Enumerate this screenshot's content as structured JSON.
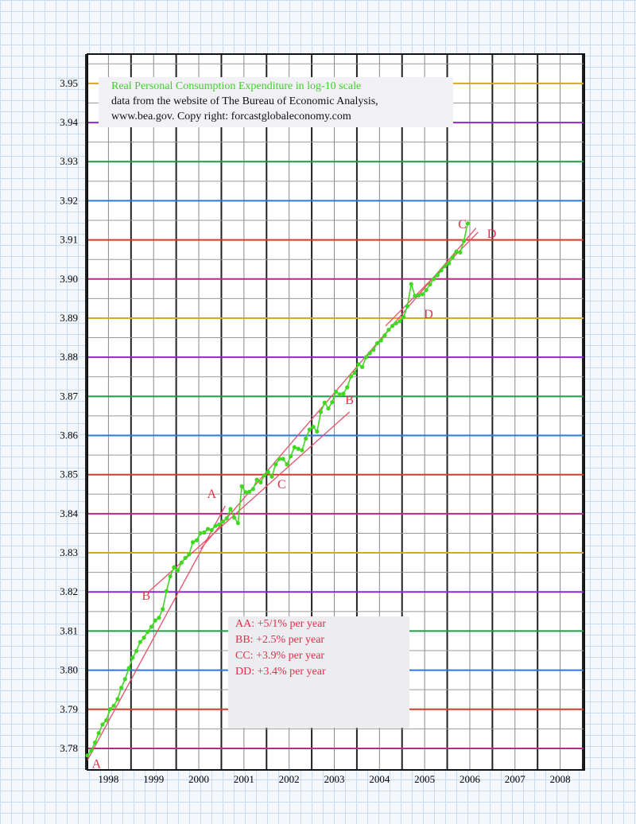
{
  "chart_data": {
    "type": "line",
    "title_lines": [
      "Real Personal Consumption Expenditure in log-10 scale",
      "data from the website of The Bureau of Economic Analysis,",
      "www.bea.gov. Copy right: forcastglobaleconomy.com"
    ],
    "xlabel": "",
    "ylabel": "",
    "x_ticks": [
      "1998",
      "1999",
      "2000",
      "2001",
      "2002",
      "2003",
      "2004",
      "2005",
      "2006",
      "2007",
      "2008"
    ],
    "y_ticks": [
      "3.78",
      "3.79",
      "3.80",
      "3.81",
      "3.82",
      "3.83",
      "3.84",
      "3.85",
      "3.86",
      "3.87",
      "3.88",
      "3.89",
      "3.90",
      "3.91",
      "3.92",
      "3.93",
      "3.94",
      "3.95"
    ],
    "xlim": [
      1998,
      2009
    ],
    "ylim": [
      3.7745,
      3.9575
    ],
    "grid": true,
    "series": [
      {
        "color": "#40d820",
        "x": [
          1998.0,
          1998.083,
          1998.167,
          1998.25,
          1998.333,
          1998.417,
          1998.5,
          1998.583,
          1998.667,
          1998.75,
          1998.833,
          1998.917,
          1999.0,
          1999.083,
          1999.167,
          1999.25,
          1999.333,
          1999.417,
          1999.5,
          1999.583,
          1999.667,
          1999.75,
          1999.833,
          1999.917,
          2000.0,
          2000.083,
          2000.167,
          2000.25,
          2000.333,
          2000.417,
          2000.5,
          2000.583,
          2000.667,
          2000.75,
          2000.833,
          2000.917,
          2001.0,
          2001.083,
          2001.167,
          2001.25,
          2001.333,
          2001.417,
          2001.5,
          2001.583,
          2001.667,
          2001.75,
          2001.833,
          2001.917,
          2002.0,
          2002.083,
          2002.167,
          2002.25,
          2002.333,
          2002.417,
          2002.5,
          2002.583,
          2002.667,
          2002.75,
          2002.833,
          2002.917,
          2003.0,
          2003.083,
          2003.167,
          2003.25,
          2003.333,
          2003.417,
          2003.5,
          2003.583,
          2003.667,
          2003.75,
          2003.833,
          2003.917,
          2004.0,
          2004.083,
          2004.167,
          2004.25,
          2004.333,
          2004.417,
          2004.5,
          2004.583,
          2004.667,
          2004.75,
          2004.833,
          2004.917,
          2005.0,
          2005.083,
          2005.167,
          2005.25,
          2005.333,
          2005.417,
          2005.5,
          2005.583,
          2005.667,
          2005.75,
          2005.833,
          2005.917,
          2006.0,
          2006.083,
          2006.167,
          2006.25,
          2006.333,
          2006.417
        ],
        "values": [
          3.7782,
          3.7794,
          3.7815,
          3.7839,
          3.7861,
          3.7872,
          3.79,
          3.7909,
          3.7926,
          3.7955,
          3.7977,
          3.8005,
          3.8032,
          3.8049,
          3.8072,
          3.8083,
          3.8098,
          3.8111,
          3.8127,
          3.8134,
          3.8156,
          3.8202,
          3.824,
          3.8263,
          3.8255,
          3.8275,
          3.8287,
          3.8296,
          3.8327,
          3.8332,
          3.835,
          3.8352,
          3.8361,
          3.8358,
          3.8369,
          3.8372,
          3.838,
          3.8388,
          3.8412,
          3.839,
          3.8376,
          3.847,
          3.8455,
          3.8456,
          3.8463,
          3.8487,
          3.848,
          3.8498,
          3.8507,
          3.8495,
          3.8526,
          3.854,
          3.854,
          3.8526,
          3.8547,
          3.857,
          3.8566,
          3.8562,
          3.8592,
          3.8615,
          3.8622,
          3.861,
          3.866,
          3.8684,
          3.8669,
          3.8685,
          3.8712,
          3.8705,
          3.8707,
          3.8723,
          3.8751,
          3.876,
          3.8782,
          3.8775,
          3.88,
          3.881,
          3.8819,
          3.8836,
          3.8843,
          3.8856,
          3.887,
          3.888,
          3.8887,
          3.8892,
          3.8903,
          3.893,
          3.8987,
          3.8957,
          3.8958,
          3.8961,
          3.8972,
          3.8986,
          3.9,
          3.901,
          3.9022,
          3.9033,
          3.904,
          3.9055,
          3.907,
          3.9068,
          3.9097,
          3.9142
        ]
      }
    ],
    "trend_lines": [
      {
        "name": "AA",
        "color": "#e8506a",
        "x": [
          1998.0,
          2001.05
        ],
        "y": [
          3.777,
          3.842
        ]
      },
      {
        "name": "BB",
        "color": "#e8506a",
        "x": [
          1999.35,
          2003.8
        ],
        "y": [
          3.82,
          3.866
        ]
      },
      {
        "name": "CC",
        "color": "#e8506a",
        "x": [
          2000.5,
          2006.6
        ],
        "y": [
          3.831,
          3.913
        ]
      },
      {
        "name": "DD",
        "color": "#e8506a",
        "x": [
          2004.6,
          2006.65
        ],
        "y": [
          3.888,
          3.912
        ]
      }
    ],
    "trend_labels": [
      {
        "text": "A",
        "x": 2000.75,
        "y": 3.844
      },
      {
        "text": "B",
        "x": 1999.3,
        "y": 3.818
      },
      {
        "text": "A",
        "x": 1998.2,
        "y": 3.775
      },
      {
        "text": "C",
        "x": 2002.3,
        "y": 3.8465
      },
      {
        "text": "B",
        "x": 2003.8,
        "y": 3.868
      },
      {
        "text": "D",
        "x": 2005.55,
        "y": 3.89
      },
      {
        "text": "C",
        "x": 2006.3,
        "y": 3.913
      },
      {
        "text": "D",
        "x": 2006.95,
        "y": 3.9105
      }
    ],
    "notes": [
      "AA: +5/1% per year",
      "BB: +2.5% per year",
      "CC: +3.9% per year",
      "DD: +3.4% per year"
    ]
  }
}
